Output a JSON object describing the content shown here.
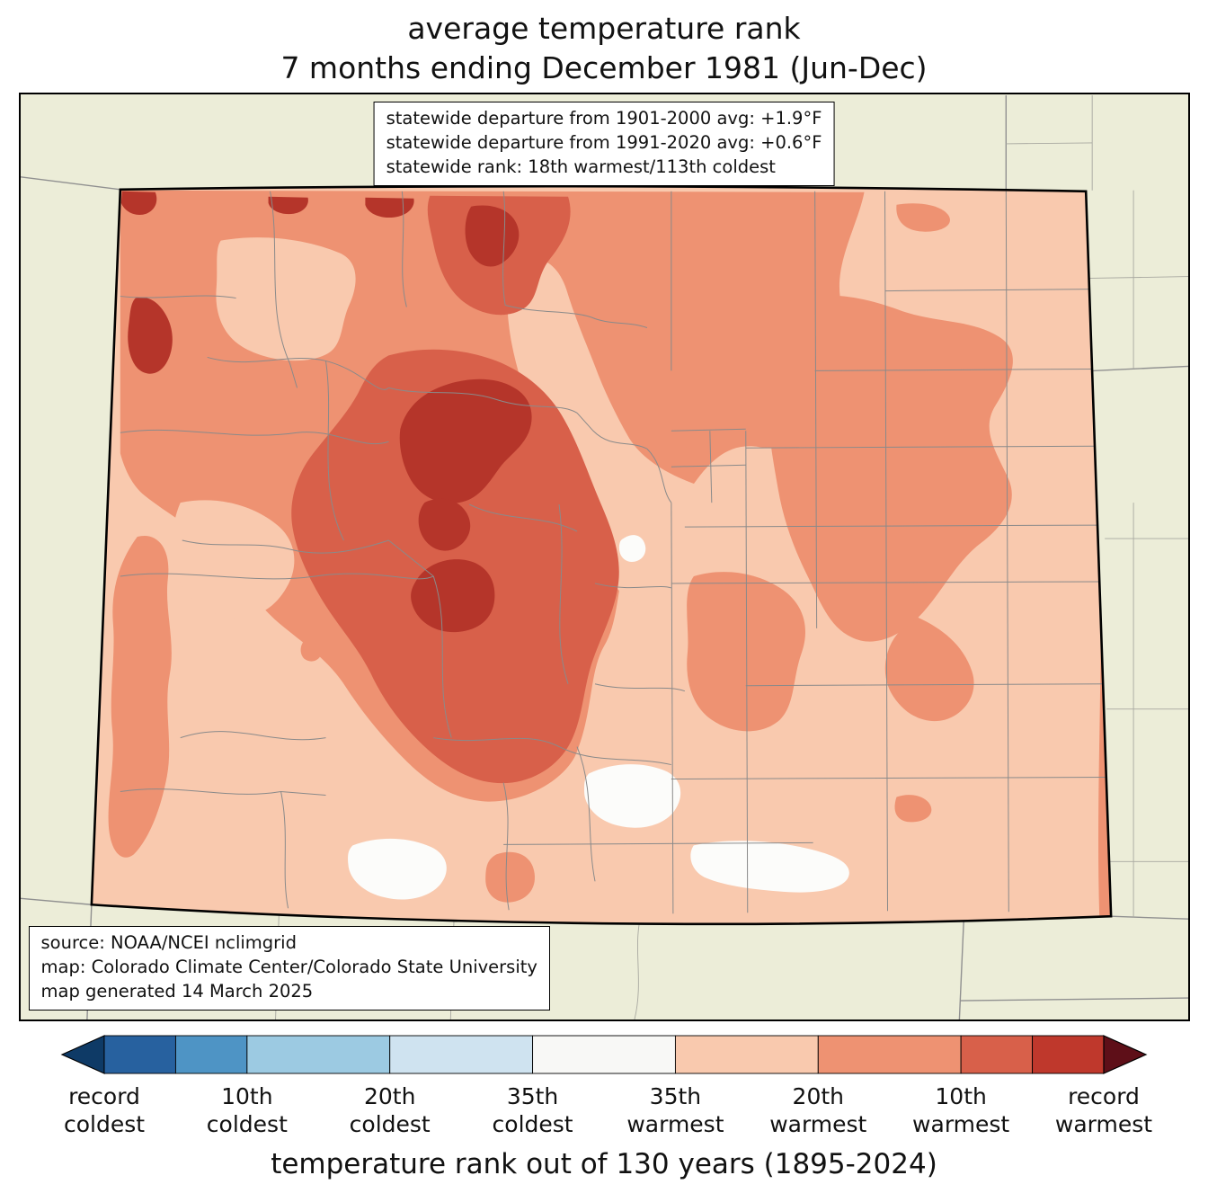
{
  "title": {
    "line1": "average temperature rank",
    "line2": "7 months ending December 1981 (Jun-Dec)"
  },
  "stats_box": {
    "line1": "statewide departure from 1901-2000 avg: +1.9°F",
    "line2": "statewide departure from 1991-2020 avg: +0.6°F",
    "line3": "statewide rank: 18th warmest/113th coldest"
  },
  "source_box": {
    "line1": "source: NOAA/NCEI nclimgrid",
    "line2": "map: Colorado Climate Center/Colorado State University",
    "line3": "map generated 14 March 2025"
  },
  "map": {
    "region": "Colorado",
    "palette": {
      "land_beige": "#ecedd8",
      "base_pink": "#f9c9ae",
      "salmon": "#ee9272",
      "orangered": "#d8604a",
      "darkred": "#b5352a",
      "white_patch": "#fcfcfa",
      "county_line": "#8a8a8a",
      "neighbor_line": "#909090",
      "neighbor_county_line": "#a8a8a0",
      "state_border": "#000000"
    }
  },
  "colorbar": {
    "caption": "temperature rank out of 130 years (1895-2024)",
    "arrow_left_color": "#0e3a66",
    "arrow_right_color": "#5e0f18",
    "segments": [
      {
        "color": "#27619f",
        "weight": 1
      },
      {
        "color": "#4e94c5",
        "weight": 1
      },
      {
        "color": "#9ccae2",
        "weight": 2
      },
      {
        "color": "#cfe3f0",
        "weight": 2
      },
      {
        "color": "#f8f8f6",
        "weight": 2
      },
      {
        "color": "#f9c9ae",
        "weight": 2
      },
      {
        "color": "#ee9272",
        "weight": 2
      },
      {
        "color": "#d8604a",
        "weight": 1
      },
      {
        "color": "#bf382c",
        "weight": 1
      }
    ],
    "labels": [
      {
        "line1": "record",
        "line2": "coldest"
      },
      {
        "line1": "10th",
        "line2": "coldest"
      },
      {
        "line1": "20th",
        "line2": "coldest"
      },
      {
        "line1": "35th",
        "line2": "coldest"
      },
      {
        "line1": "35th",
        "line2": "warmest"
      },
      {
        "line1": "20th",
        "line2": "warmest"
      },
      {
        "line1": "10th",
        "line2": "warmest"
      },
      {
        "line1": "record",
        "line2": "warmest"
      }
    ]
  }
}
